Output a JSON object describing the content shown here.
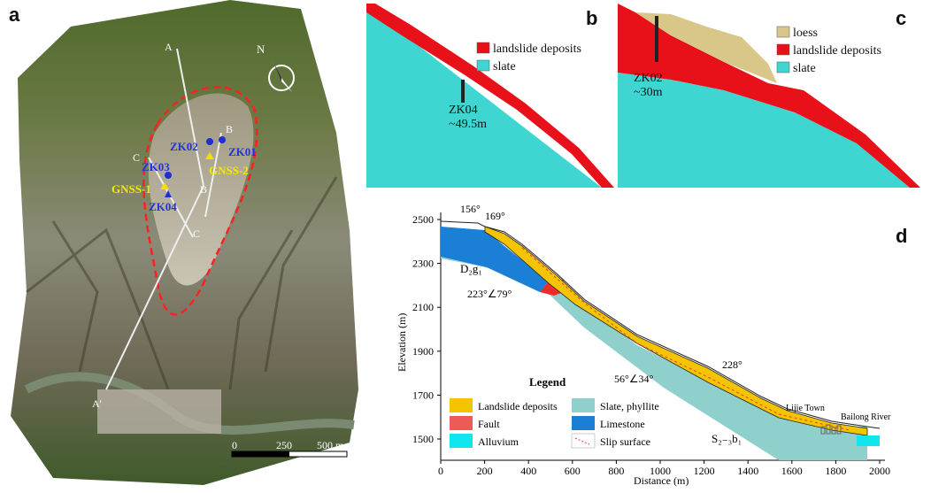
{
  "panels": {
    "a": {
      "label": "a",
      "section_labels": [
        "A",
        "A'",
        "B",
        "B",
        "C",
        "C"
      ],
      "boreholes": [
        "ZK01",
        "ZK02",
        "ZK03",
        "ZK04"
      ],
      "gnss": [
        "GNSS-1",
        "GNSS-2"
      ],
      "north": "N",
      "scalebar": [
        "0",
        "250",
        "500 m"
      ]
    },
    "b": {
      "label": "b",
      "legend": [
        "landslide deposits",
        "slate"
      ],
      "borehole": "ZK04",
      "depth": "~49.5m",
      "colors": {
        "deposit": "#e8111a",
        "slate": "#3fd6d2"
      }
    },
    "c": {
      "label": "c",
      "legend": [
        "loess",
        "landslide deposits",
        "slate"
      ],
      "borehole": "ZK02",
      "depth": "~30m",
      "colors": {
        "loess": "#d9c78a",
        "deposit": "#e8111a",
        "slate": "#3fd6d2"
      }
    },
    "d": {
      "label": "d",
      "ylabel": "Elevation (m)",
      "xlabel": "Distance (m)",
      "xticks": [
        "0",
        "200",
        "400",
        "600",
        "800",
        "1000",
        "1200",
        "1400",
        "1600",
        "1800",
        "2000"
      ],
      "yticks": [
        "1500",
        "1700",
        "1900",
        "2100",
        "2300",
        "2500"
      ],
      "annotations": {
        "angle1": "156°",
        "angle2": "169°",
        "angle3": "228°",
        "strat_upper": "D₂g₁",
        "strat_lower": "S₂₋₃b₁",
        "dip1": "223°∠79°",
        "dip2": "56°∠34°",
        "town": "Lijie Town",
        "river": "Bailong River"
      },
      "legend_title": "Legend",
      "legend": [
        {
          "label": "Landslide deposits",
          "color": "#f5c400"
        },
        {
          "label": "Slate, phyllite",
          "color": "#8fd0cc"
        },
        {
          "label": "Fault",
          "color": "#ee5a5a"
        },
        {
          "label": "Limestone",
          "color": "#1b7fd6"
        },
        {
          "label": "Alluvium",
          "color": "#11e6ee"
        },
        {
          "label": "Slip surface",
          "color": "#e04040"
        }
      ]
    }
  }
}
